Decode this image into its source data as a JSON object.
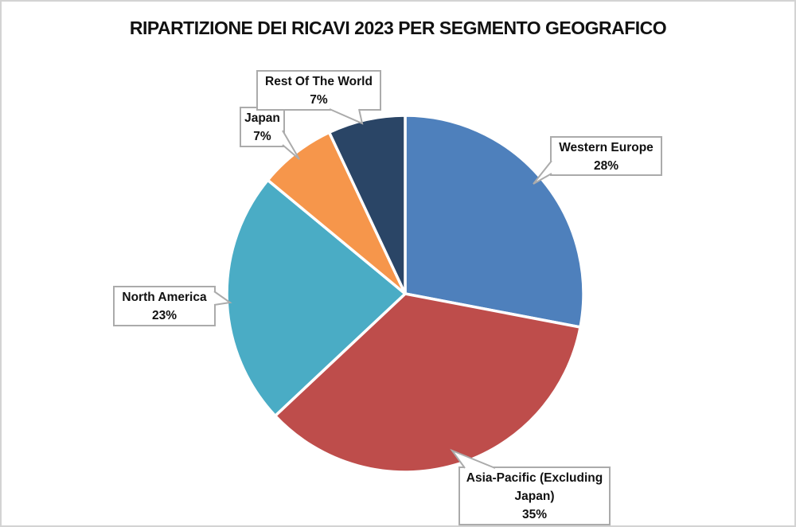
{
  "title": "RIPARTIZIONE DEI RICAVI 2023 PER SEGMENTO GEOGRAFICO",
  "chart_data": {
    "type": "pie",
    "title": "RIPARTIZIONE DEI RICAVI 2023 PER SEGMENTO GEOGRAFICO",
    "categories": [
      "Western Europe",
      "Asia-Pacific (Excluding Japan)",
      "North America",
      "Japan",
      "Rest Of The World"
    ],
    "values": [
      28,
      35,
      23,
      7,
      7
    ],
    "unit": "%",
    "colors": [
      "#4E80BC",
      "#BE4D4B",
      "#4AACC5",
      "#F6964B",
      "#2A4566"
    ],
    "slice_ids": [
      "western-europe",
      "asia-pacific-excluding-japan",
      "north-america",
      "japan",
      "rest-of-the-world"
    ],
    "start_angle_deg": 0,
    "direction": "clockwise",
    "slice_border_color": "#FFFFFF",
    "label_style": "callout-boxes",
    "legend": "none"
  },
  "callouts": [
    {
      "name": "Western Europe",
      "value": "28%"
    },
    {
      "name": "Asia-Pacific (Excluding Japan)",
      "value": "35%"
    },
    {
      "name": "North America",
      "value": "23%"
    },
    {
      "name": "Japan",
      "value": "7%"
    },
    {
      "name": "Rest Of The World",
      "value": "7%"
    }
  ],
  "styles": {
    "callout_border": "#ABABAB",
    "canvas_border": "#D3D3D3",
    "text_color": "#111111"
  }
}
